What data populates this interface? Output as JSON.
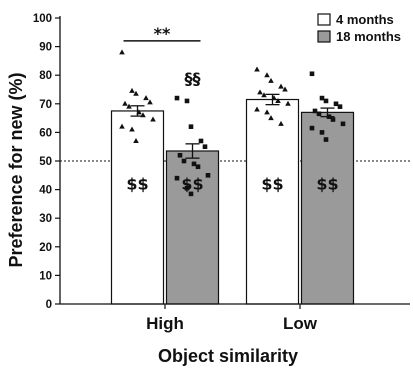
{
  "chart_data": {
    "type": "bar",
    "xlabel": "Object similarity",
    "ylabel": "Preference for new (%)",
    "ylim": [
      0,
      100
    ],
    "yticks": [
      "0",
      "10",
      "20",
      "30",
      "40",
      "50",
      "60",
      "70",
      "80",
      "90",
      "100"
    ],
    "categories": [
      "High",
      "Low"
    ],
    "reference_line": 50,
    "legend_position": "top-right",
    "series": [
      {
        "name": "4 months",
        "color": "#ffffff",
        "marker": "triangle",
        "values": [
          67.5,
          71.5
        ],
        "sem": [
          1.8,
          1.8
        ],
        "points": [
          [
            88,
            74.5,
            73.5,
            72,
            70.5,
            70,
            69,
            67,
            66,
            64.5,
            62,
            61,
            57
          ],
          [
            82,
            80,
            78,
            76,
            75,
            74,
            73,
            72,
            71,
            70,
            68,
            67,
            65,
            63
          ]
        ],
        "annotations": [
          "$$",
          "$$"
        ]
      },
      {
        "name": "18 months",
        "color": "#9a9a9a",
        "marker": "square",
        "values": [
          53.5,
          67
        ],
        "sem": [
          2.5,
          1.5
        ],
        "points": [
          [
            72,
            71,
            62,
            57,
            55,
            52,
            50,
            49,
            48,
            45,
            44,
            40.5,
            38.5
          ],
          [
            80.5,
            72,
            71,
            70,
            69,
            67.5,
            66.5,
            65.5,
            64.5,
            63,
            61.5,
            60,
            57.5
          ]
        ],
        "annotations": [
          "$$",
          "$$"
        ]
      }
    ],
    "significance": [
      {
        "text": "**",
        "between": "High: 4 months vs 18 months"
      },
      {
        "text": "§§",
        "series": "18 months",
        "category": "High"
      }
    ]
  }
}
